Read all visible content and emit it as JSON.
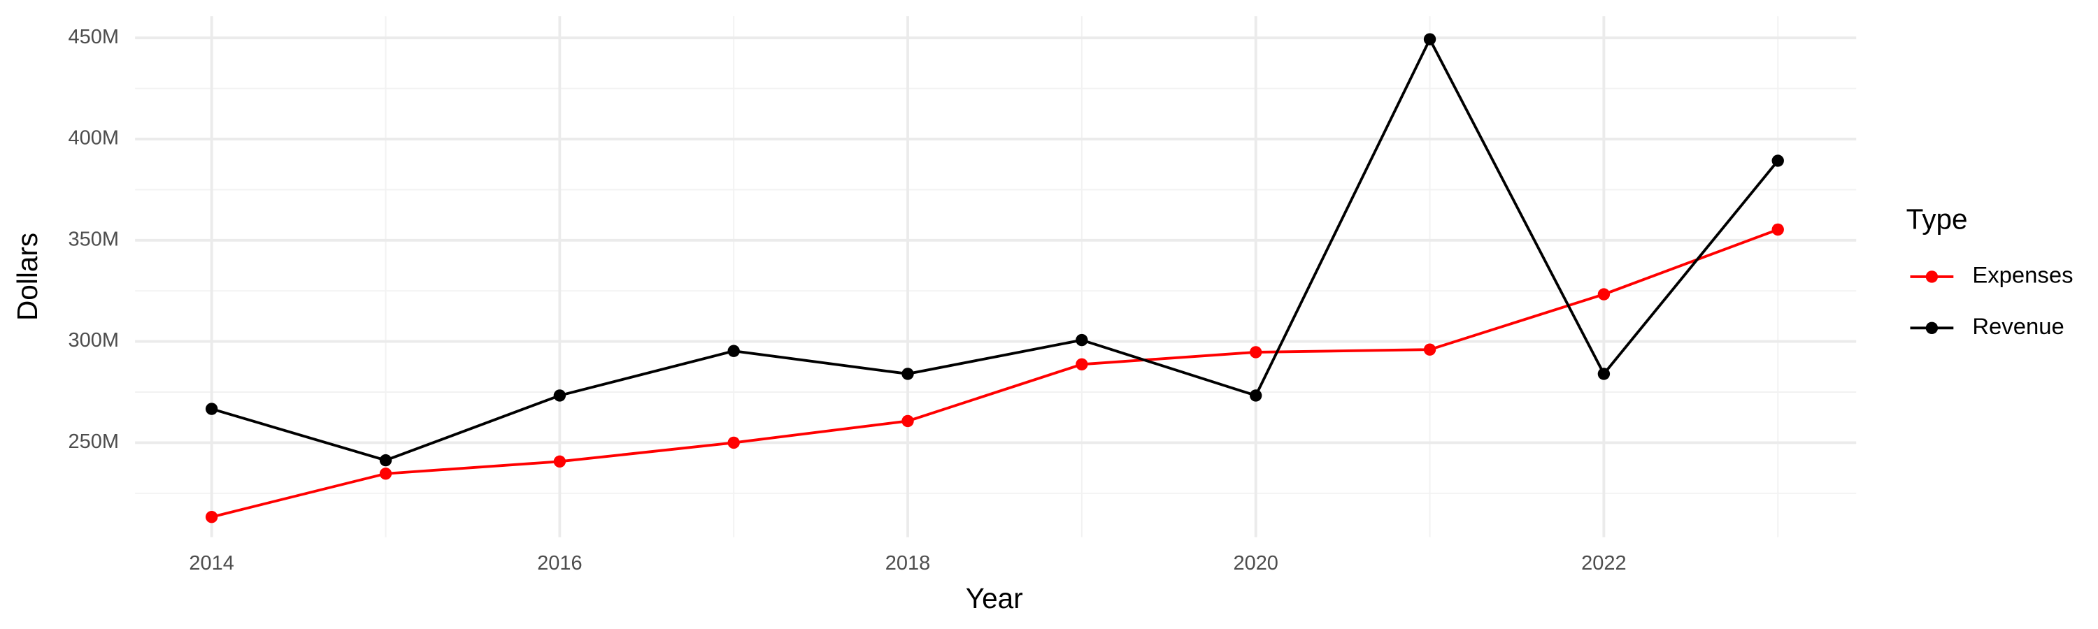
{
  "chart_data": {
    "type": "line",
    "x_label": "Year",
    "y_label": "Dollars",
    "legend_title": "Type",
    "legend_position": "right",
    "grid": true,
    "x": [
      2014,
      2015,
      2016,
      2017,
      2018,
      2019,
      2020,
      2021,
      2022,
      2023
    ],
    "series": [
      {
        "name": "Expenses",
        "color": "#ff0000",
        "values": [
          213300000,
          234700000,
          240700000,
          250000000,
          260700000,
          288700000,
          294700000,
          296000000,
          323300000,
          355300000
        ]
      },
      {
        "name": "Revenue",
        "color": "#000000",
        "values": [
          266700000,
          241300000,
          273300000,
          295300000,
          284000000,
          300700000,
          273300000,
          449300000,
          284000000,
          389300000
        ]
      }
    ],
    "xlim": [
      2013.56,
      2023.45
    ],
    "xticks": [
      2014,
      2016,
      2018,
      2020,
      2022
    ],
    "ylim": [
      203300000,
      460700000
    ],
    "yticks": [
      {
        "value": 250000000,
        "label": "250M"
      },
      {
        "value": 300000000,
        "label": "300M"
      },
      {
        "value": 350000000,
        "label": "350M"
      },
      {
        "value": 400000000,
        "label": "400M"
      },
      {
        "value": 450000000,
        "label": "450M"
      }
    ]
  }
}
